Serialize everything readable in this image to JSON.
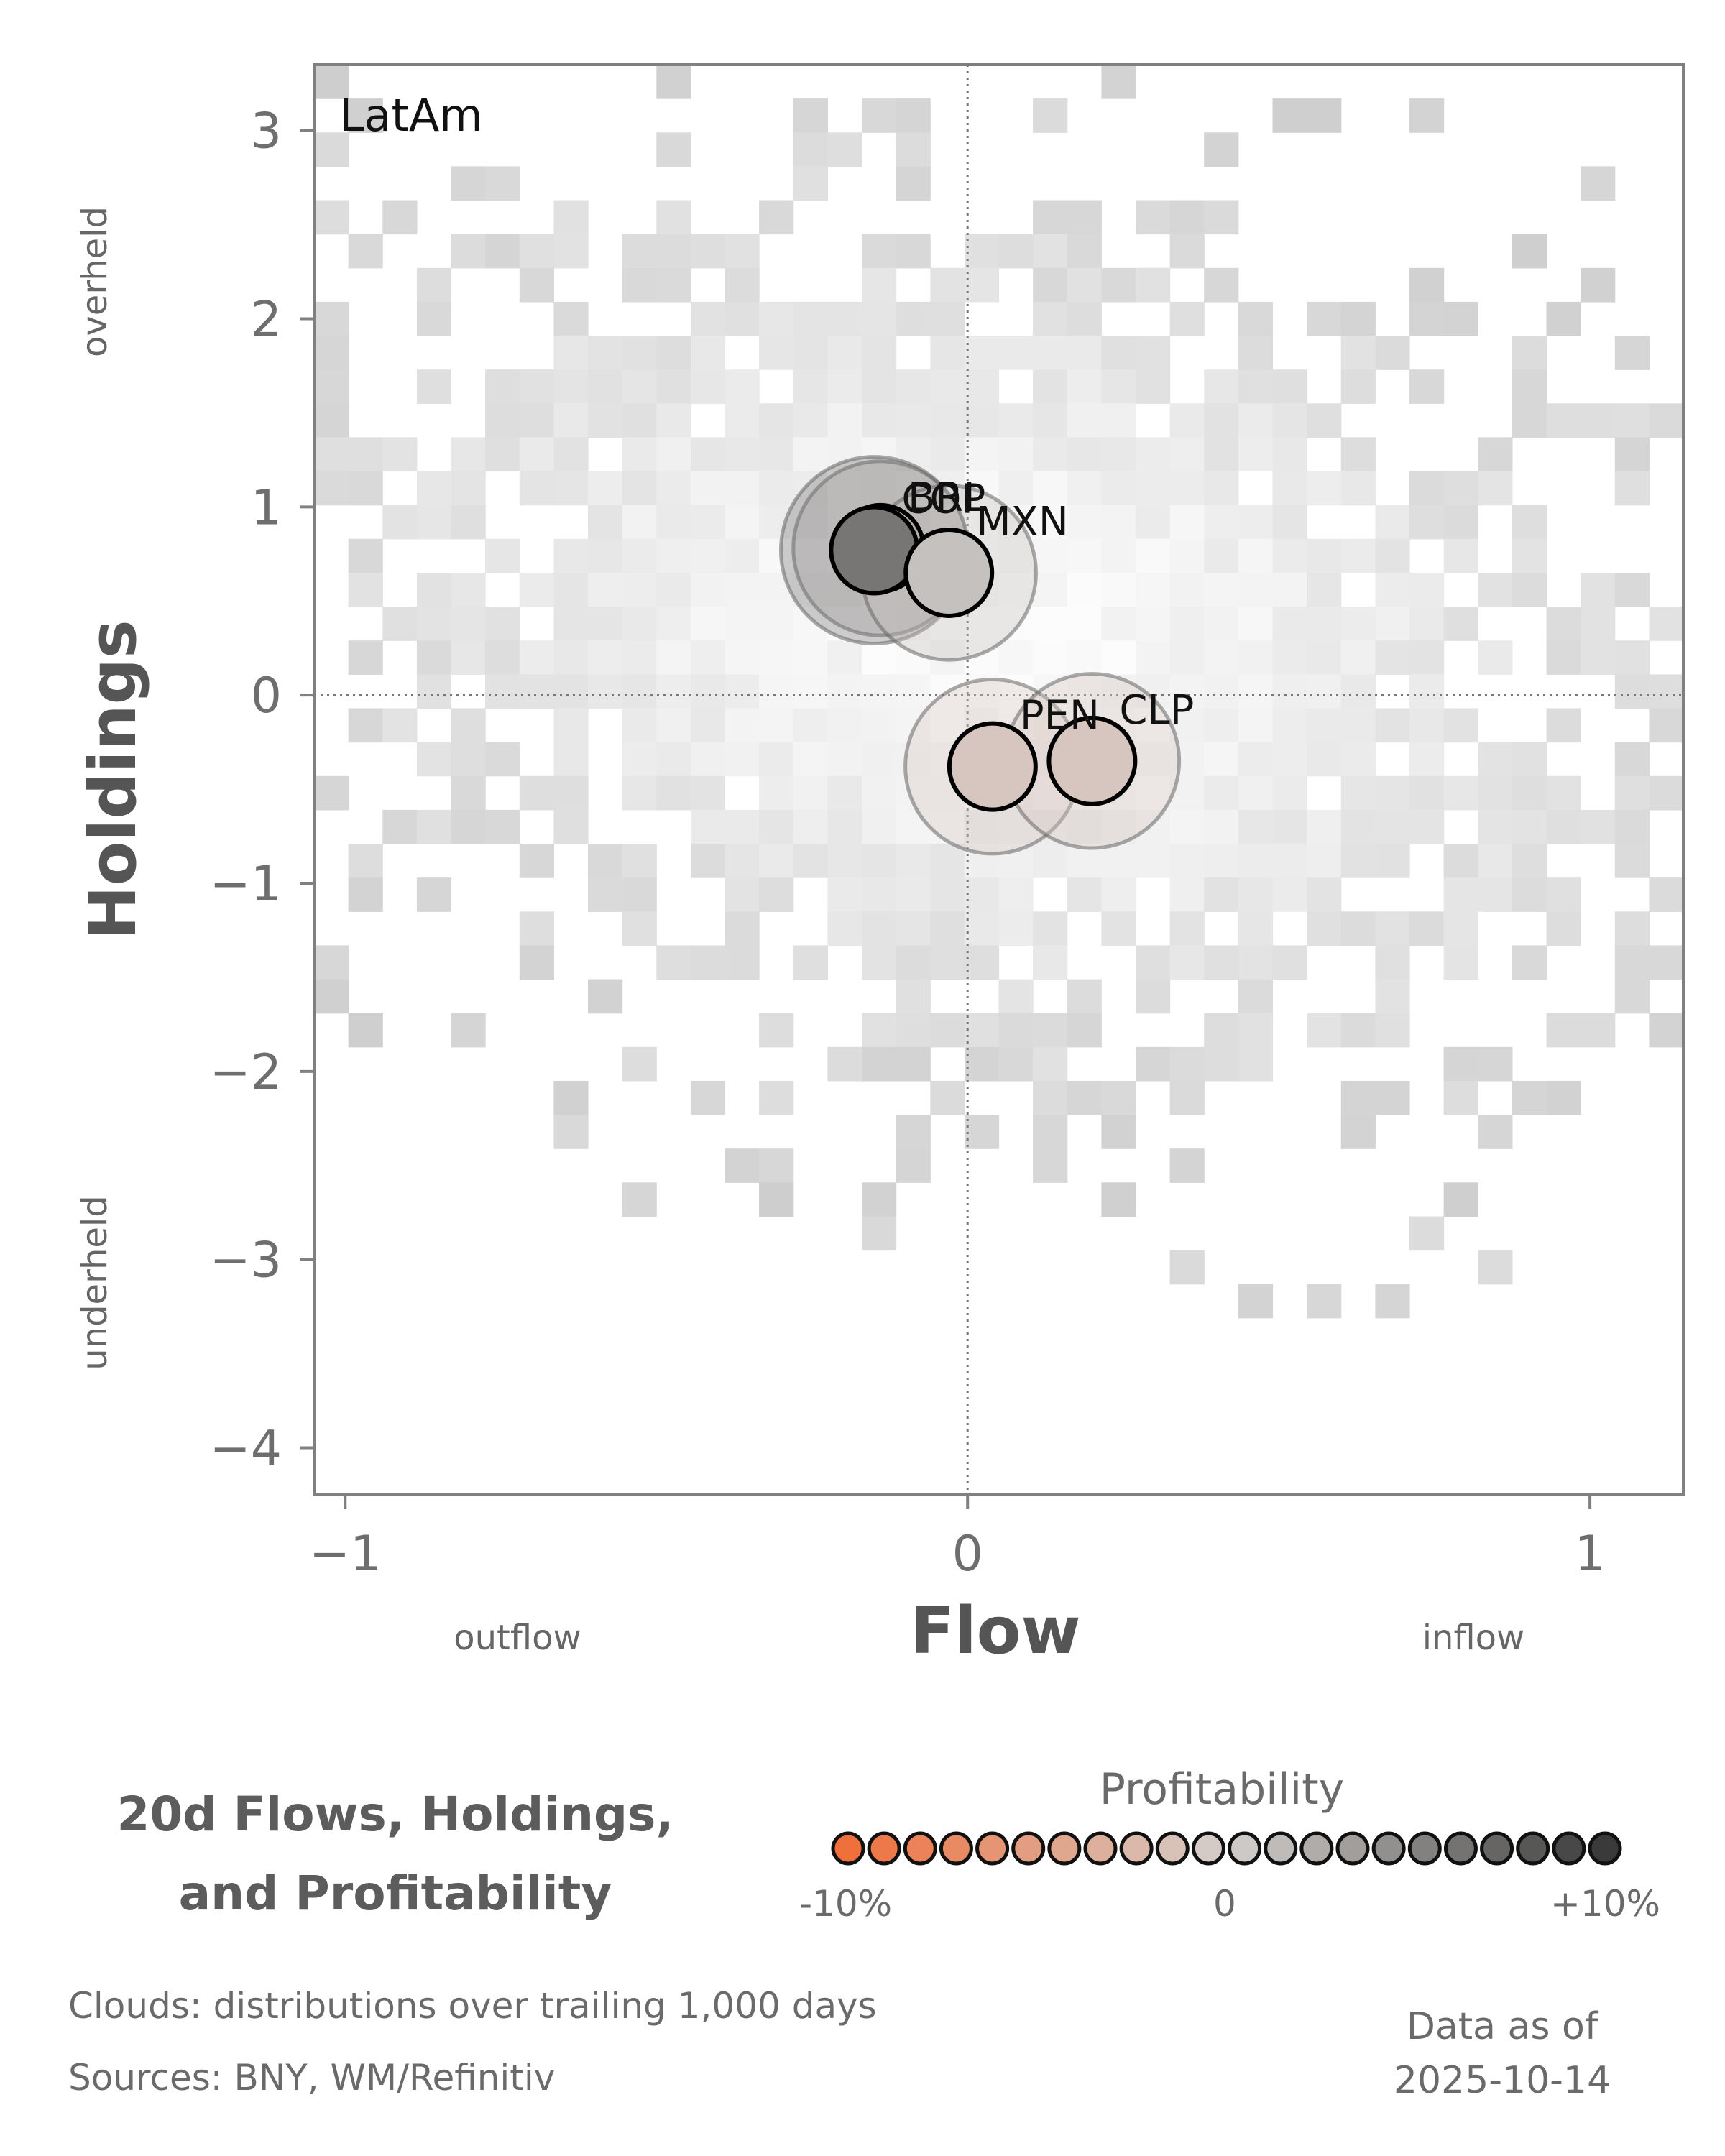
{
  "chart_data": {
    "type": "scatter",
    "panel_label": "LatAm",
    "xlabel": "Flow",
    "ylabel": "Holdings",
    "x_side_labels": {
      "left": "outflow",
      "right": "inflow"
    },
    "y_side_labels": {
      "top": "overheld",
      "bottom": "underheld"
    },
    "xlim": [
      -1.05,
      1.15
    ],
    "ylim": [
      -4.25,
      3.35
    ],
    "x_ticks": [
      -1,
      0,
      1
    ],
    "y_ticks": [
      3,
      2,
      1,
      0,
      -1,
      -2,
      -3,
      -4
    ],
    "x_tick_labels": [
      "−1",
      "0",
      "1"
    ],
    "y_tick_labels": [
      "3",
      "2",
      "1",
      "0",
      "−1",
      "−2",
      "−3",
      "−4"
    ],
    "reference_lines": {
      "x": 0,
      "y": 0,
      "style": "dotted"
    },
    "background": "2D histogram clouds (grey) of trailing flow/holdings distribution",
    "series": [
      {
        "label": "BRL",
        "flow": -0.14,
        "holdings": 0.78,
        "profitability": 2,
        "cloud_radius": 0.14
      },
      {
        "label": "COP",
        "flow": -0.15,
        "holdings": 0.77,
        "profitability": 6,
        "cloud_radius": 0.15
      },
      {
        "label": "MXN",
        "flow": -0.03,
        "holdings": 0.65,
        "profitability": 1,
        "cloud_radius": 0.14
      },
      {
        "label": "PEN",
        "flow": 0.04,
        "holdings": -0.38,
        "profitability": -1,
        "cloud_radius": 0.14
      },
      {
        "label": "CLP",
        "flow": 0.2,
        "holdings": -0.35,
        "profitability": -1,
        "cloud_radius": 0.14
      }
    ]
  },
  "title_lines": [
    "20d Flows, Holdings,",
    "and Profitability"
  ],
  "legend": {
    "title": "Profitability",
    "ticks": [
      "-10%",
      "0",
      "+10%"
    ],
    "range": [
      -10,
      10
    ],
    "colors": {
      "low": "#f0703c",
      "mid": "#d4d0cd",
      "high": "#3a3a3a"
    }
  },
  "notes": [
    "Clouds:  distributions over trailing 1,000 days",
    "Sources:  BNY, WM/Refinitiv"
  ],
  "as_of": [
    "Data as of",
    "2025-10-14"
  ]
}
